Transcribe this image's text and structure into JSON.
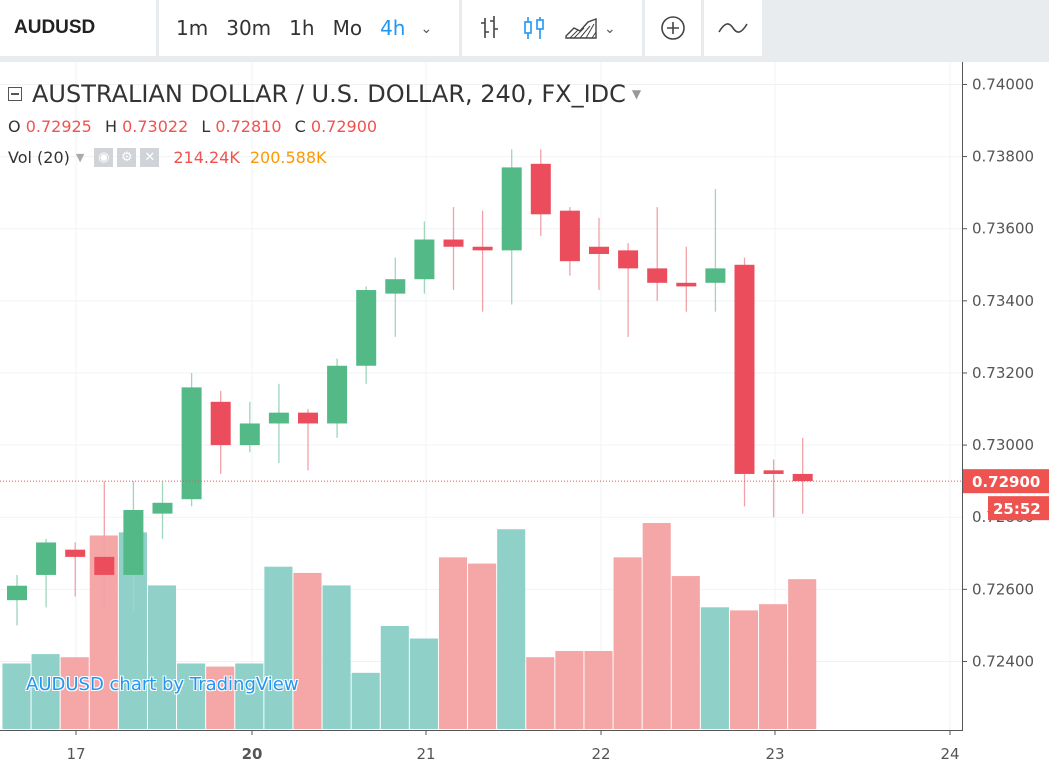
{
  "toolbar": {
    "symbol": "AUDUSD",
    "intervals": [
      "1m",
      "30m",
      "1h",
      "Mo",
      "4h"
    ],
    "active_interval": "4h"
  },
  "legend": {
    "title": "AUSTRALIAN DOLLAR / U.S. DOLLAR, 240, FX_IDC",
    "ohlc": [
      {
        "label": "O",
        "value": "0.72925"
      },
      {
        "label": "H",
        "value": "0.73022"
      },
      {
        "label": "L",
        "value": "0.72810"
      },
      {
        "label": "C",
        "value": "0.72900"
      }
    ],
    "vol_label": "Vol (20)",
    "vol_value": "214.24K",
    "vol_ma": "200.588K"
  },
  "watermark": "AUDUSD chart by TradingView",
  "price_tag": "0.72900",
  "countdown": "25:52",
  "colors": {
    "up": "#53b987",
    "down": "#eb4d5c",
    "vol_up": "#8fd1c9",
    "vol_down": "#f5a6a6",
    "accent": "#2196f3"
  },
  "chart_data": {
    "type": "candlestick",
    "x_tick_labels": [
      "17",
      "20",
      "21",
      "22",
      "23",
      "24"
    ],
    "y_tick_labels": [
      "0.74000",
      "0.73800",
      "0.73600",
      "0.73400",
      "0.73200",
      "0.73000",
      "0.72600",
      "0.72400"
    ],
    "ylim": [
      0.7221,
      0.7409
    ],
    "last_price": 0.729,
    "grid": true,
    "candles": [
      {
        "o": 0.7257,
        "h": 0.7264,
        "l": 0.725,
        "c": 0.7261
      },
      {
        "o": 0.7264,
        "h": 0.7274,
        "l": 0.7255,
        "c": 0.7273
      },
      {
        "o": 0.7271,
        "h": 0.7273,
        "l": 0.7258,
        "c": 0.7269
      },
      {
        "o": 0.7269,
        "h": 0.729,
        "l": 0.7255,
        "c": 0.7264
      },
      {
        "o": 0.7264,
        "h": 0.729,
        "l": 0.7254,
        "c": 0.7282
      },
      {
        "o": 0.7281,
        "h": 0.729,
        "l": 0.7274,
        "c": 0.7284
      },
      {
        "o": 0.7285,
        "h": 0.732,
        "l": 0.7283,
        "c": 0.7316
      },
      {
        "o": 0.7312,
        "h": 0.7315,
        "l": 0.7292,
        "c": 0.73
      },
      {
        "o": 0.73,
        "h": 0.7312,
        "l": 0.7298,
        "c": 0.7306
      },
      {
        "o": 0.7306,
        "h": 0.7317,
        "l": 0.7295,
        "c": 0.7309
      },
      {
        "o": 0.7309,
        "h": 0.731,
        "l": 0.7293,
        "c": 0.7306
      },
      {
        "o": 0.7306,
        "h": 0.7324,
        "l": 0.7302,
        "c": 0.7322
      },
      {
        "o": 0.7322,
        "h": 0.7344,
        "l": 0.7317,
        "c": 0.7343
      },
      {
        "o": 0.7342,
        "h": 0.7352,
        "l": 0.733,
        "c": 0.7346
      },
      {
        "o": 0.7346,
        "h": 0.7362,
        "l": 0.7342,
        "c": 0.7357
      },
      {
        "o": 0.7357,
        "h": 0.7366,
        "l": 0.7343,
        "c": 0.7355
      },
      {
        "o": 0.7355,
        "h": 0.7365,
        "l": 0.7337,
        "c": 0.7354
      },
      {
        "o": 0.7354,
        "h": 0.7382,
        "l": 0.7339,
        "c": 0.7377
      },
      {
        "o": 0.7378,
        "h": 0.7382,
        "l": 0.7358,
        "c": 0.7364
      },
      {
        "o": 0.7365,
        "h": 0.7366,
        "l": 0.7347,
        "c": 0.7351
      },
      {
        "o": 0.7355,
        "h": 0.7363,
        "l": 0.7343,
        "c": 0.7353
      },
      {
        "o": 0.7354,
        "h": 0.7356,
        "l": 0.733,
        "c": 0.7349
      },
      {
        "o": 0.7349,
        "h": 0.7366,
        "l": 0.734,
        "c": 0.7345
      },
      {
        "o": 0.7345,
        "h": 0.7355,
        "l": 0.7337,
        "c": 0.7344
      },
      {
        "o": 0.7345,
        "h": 0.7371,
        "l": 0.7337,
        "c": 0.7349
      },
      {
        "o": 0.735,
        "h": 0.7352,
        "l": 0.7283,
        "c": 0.7292
      },
      {
        "o": 0.7293,
        "h": 0.7296,
        "l": 0.728,
        "c": 0.7292
      },
      {
        "o": 0.7292,
        "h": 0.7302,
        "l": 0.7281,
        "c": 0.729
      }
    ],
    "volume": [
      {
        "v": 0.21,
        "up": true
      },
      {
        "v": 0.24,
        "up": true
      },
      {
        "v": 0.23,
        "up": false
      },
      {
        "v": 0.62,
        "up": false
      },
      {
        "v": 0.63,
        "up": true
      },
      {
        "v": 0.46,
        "up": true
      },
      {
        "v": 0.21,
        "up": true
      },
      {
        "v": 0.2,
        "up": false
      },
      {
        "v": 0.21,
        "up": true
      },
      {
        "v": 0.52,
        "up": true
      },
      {
        "v": 0.5,
        "up": false
      },
      {
        "v": 0.46,
        "up": true
      },
      {
        "v": 0.18,
        "up": true
      },
      {
        "v": 0.33,
        "up": true
      },
      {
        "v": 0.29,
        "up": true
      },
      {
        "v": 0.55,
        "up": false
      },
      {
        "v": 0.53,
        "up": false
      },
      {
        "v": 0.64,
        "up": true
      },
      {
        "v": 0.23,
        "up": false
      },
      {
        "v": 0.25,
        "up": false
      },
      {
        "v": 0.25,
        "up": false
      },
      {
        "v": 0.55,
        "up": false
      },
      {
        "v": 0.66,
        "up": false
      },
      {
        "v": 0.49,
        "up": false
      },
      {
        "v": 0.39,
        "up": true
      },
      {
        "v": 0.38,
        "up": false
      },
      {
        "v": 0.4,
        "up": false
      },
      {
        "v": 0.48,
        "up": false
      }
    ]
  }
}
